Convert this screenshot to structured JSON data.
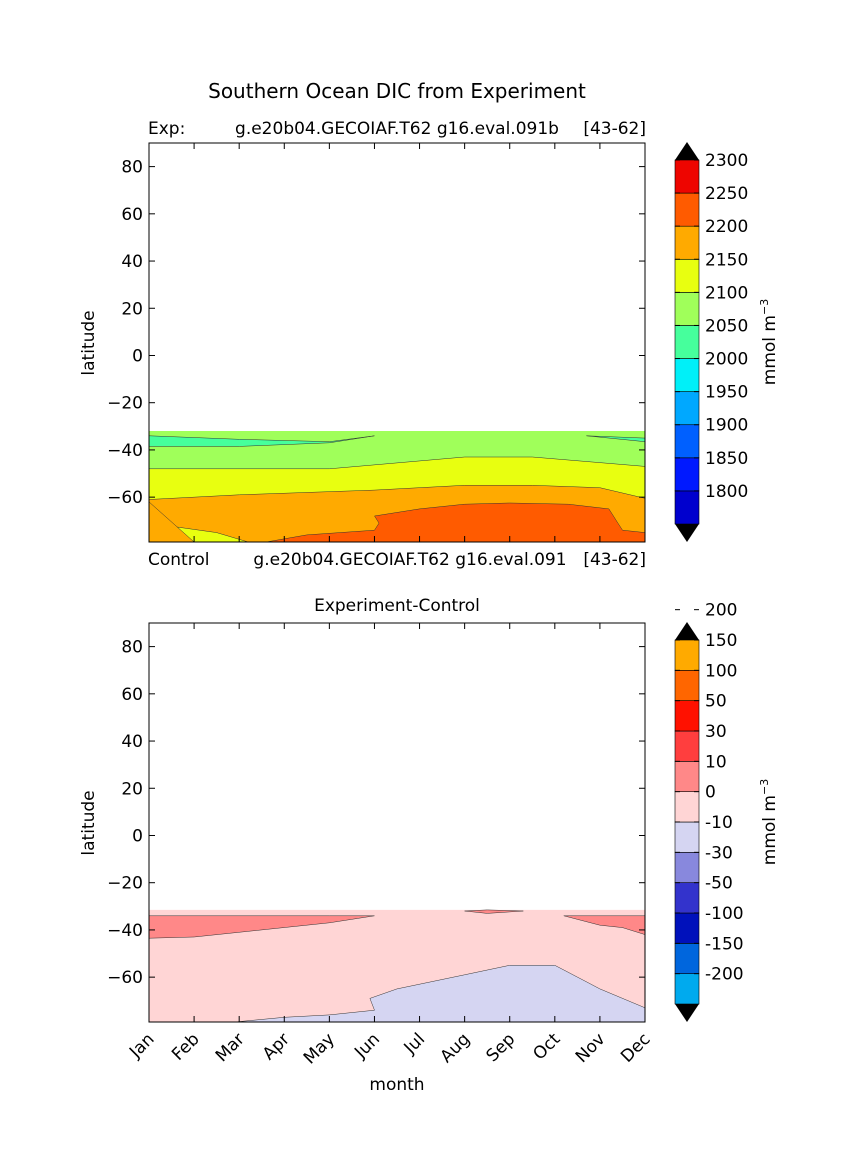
{
  "figure": {
    "title": "Southern Ocean DIC from Experiment"
  },
  "chart_data": [
    {
      "type": "heatmap",
      "left_label": "Exp:",
      "center_label": "g.e20b04.GECOIAF.T62 g16.eval.091b",
      "right_label": "[43-62]",
      "xlabel": "",
      "ylabel": "latitude",
      "xlim": [
        0,
        11
      ],
      "ylim": [
        -79,
        90
      ],
      "yticks": [
        80,
        60,
        40,
        20,
        0,
        -20,
        -40,
        -60
      ],
      "y_tick_labels": [
        "80",
        "60",
        "40",
        "20",
        "0",
        "−20",
        "−40",
        "−60"
      ],
      "data_lat_range": [
        -79,
        -32
      ],
      "colorbar": {
        "label": "mmol m",
        "label_exponent": "−3",
        "tick_labels": [
          "1800",
          "1850",
          "1900",
          "1950",
          "2000",
          "2050",
          "2100",
          "2150",
          "2200",
          "2250",
          "2300"
        ],
        "colors": [
          "#00008f",
          "#0000ce",
          "#0019ff",
          "#0060ff",
          "#00a8ff",
          "#00f0f8",
          "#46ff9c",
          "#a0ff5a",
          "#e8ff10",
          "#ffaa00",
          "#ff5b00",
          "#ee0500",
          "#7f0000"
        ]
      },
      "bands": [
        {
          "level": "2050-2100",
          "color": "#a0ff5a"
        },
        {
          "level": "2000-2050",
          "color": "#46ff9c"
        },
        {
          "level": "2100-2150",
          "color": "#e8ff10"
        },
        {
          "level": "2150-2200",
          "color": "#ffaa00"
        },
        {
          "level": "2200-2250",
          "color": "#ff5b00"
        }
      ]
    },
    {
      "type": "heatmap",
      "left_label": "Control",
      "center_label": "g.e20b04.GECOIAF.T62 g16.eval.091",
      "right_label": "[43-62]",
      "title": "Experiment-Control",
      "xlabel": "month",
      "ylabel": "latitude",
      "categories": [
        "Jan",
        "Feb",
        "Mar",
        "Apr",
        "May",
        "Jun",
        "Jul",
        "Aug",
        "Sep",
        "Oct",
        "Nov",
        "Dec"
      ],
      "xlim": [
        0,
        11
      ],
      "ylim": [
        -79,
        90
      ],
      "yticks": [
        80,
        60,
        40,
        20,
        0,
        -20,
        -40,
        -60
      ],
      "y_tick_labels": [
        "80",
        "60",
        "40",
        "20",
        "0",
        "−20",
        "−40",
        "−60"
      ],
      "data_lat_range": [
        -79,
        -32
      ],
      "colorbar": {
        "label": "mmol m",
        "label_exponent": "−3",
        "tick_labels": [
          "-200",
          "-150",
          "-100",
          "-50",
          "-30",
          "-10",
          "0",
          "10",
          "30",
          "50",
          "100",
          "150",
          "200"
        ],
        "colors": [
          "#00ffff",
          "#00aaee",
          "#0066dd",
          "#0011bb",
          "#3333cc",
          "#8888dd",
          "#d5d5f2",
          "#ffd5d5",
          "#ff8888",
          "#ff3e3e",
          "#ff1100",
          "#ff6600",
          "#ffaa00",
          "#ffff00"
        ]
      },
      "bands": [
        {
          "level": "0-10",
          "color": "#ffd5d5"
        },
        {
          "level": "10-30",
          "color": "#ff8888"
        },
        {
          "level": "-10-0",
          "color": "#d5d5f2"
        }
      ]
    }
  ]
}
